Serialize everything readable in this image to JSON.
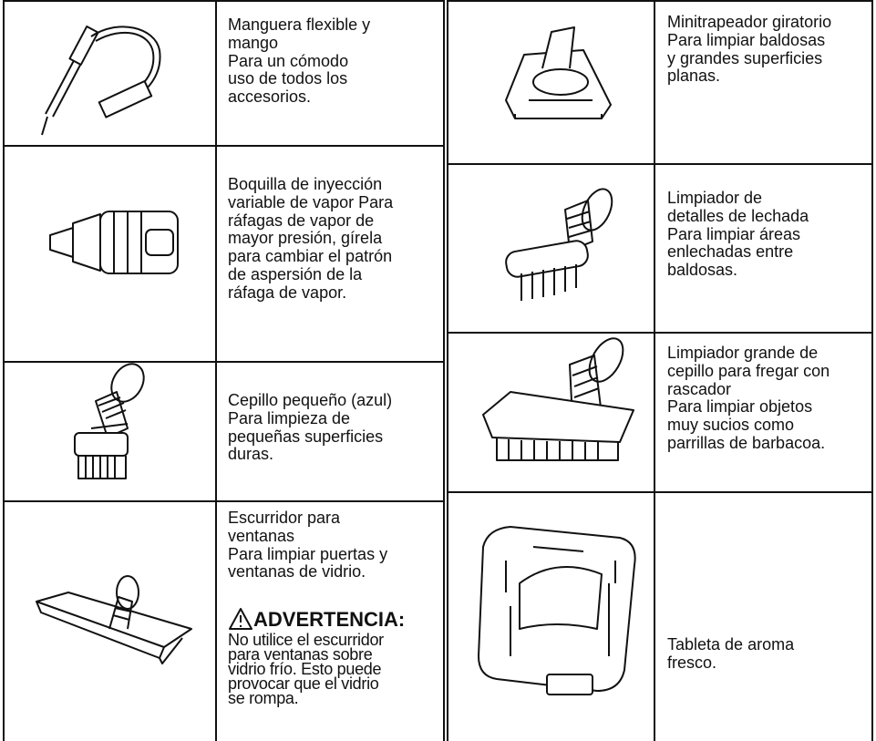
{
  "left": {
    "rows": [
      {
        "lines": [
          "Manguera flexible y",
          "mango",
          "Para un cómodo",
          "uso de todos los",
          "accesorios."
        ]
      },
      {
        "lines": [
          "Boquilla de inyección",
          "variable de vapor Para",
          "ráfagas de vapor de",
          "mayor presión, gírela",
          "para cambiar el patrón",
          "de aspersión de la",
          "ráfaga de vapor."
        ]
      },
      {
        "lines": [
          "Cepillo pequeño (azul)",
          "Para limpieza de",
          "pequeñas superficies",
          "duras."
        ]
      },
      {
        "lines": [
          "Escurridor para",
          "ventanas",
          "Para limpiar puertas y",
          "ventanas de vidrio."
        ],
        "warning": {
          "title": "ADVERTENCIA:",
          "lines": [
            "No utilice el escurridor",
            "para ventanas sobre",
            "vidrio frío. Esto puede",
            "provocar que el vidrio",
            "se rompa."
          ]
        }
      }
    ]
  },
  "right": {
    "rows": [
      {
        "lines": [
          "Minitrapeador giratorio",
          "Para limpiar baldosas",
          "y grandes superficies",
          "planas."
        ]
      },
      {
        "lines": [
          "Limpiador de",
          "detalles de lechada",
          "Para limpiar áreas",
          "enlechadas entre",
          "baldosas."
        ]
      },
      {
        "lines": [
          "Limpiador grande de",
          "cepillo para fregar con",
          "rascador",
          "Para limpiar objetos",
          "muy sucios como",
          "parrillas de barbacoa."
        ]
      },
      {
        "lines": [
          "Tableta de aroma",
          "fresco."
        ]
      }
    ]
  }
}
